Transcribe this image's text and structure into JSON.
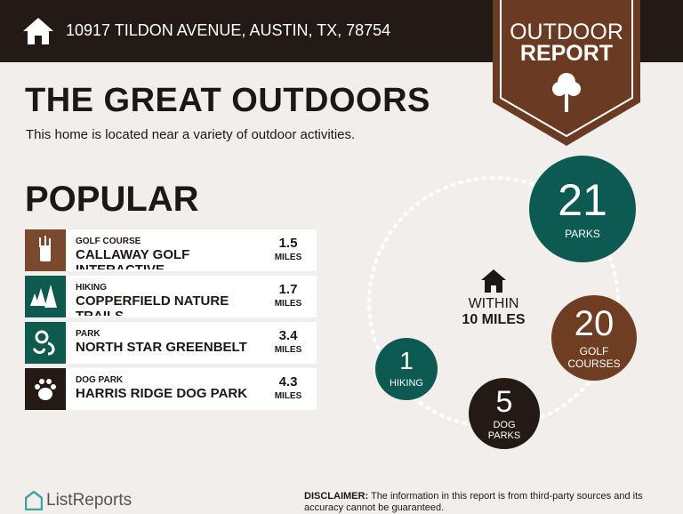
{
  "header": {
    "address": "10917 TILDON AVENUE, AUSTIN, TX, 78754",
    "badge": [
      "OUTDOOR",
      "REPORT"
    ]
  },
  "title": "THE GREAT OUTDOORS",
  "subtitle": "This home is located near a variety of outdoor activities.",
  "popular": {
    "heading": "POPULAR",
    "items": [
      {
        "category": "GOLF COURSE",
        "name": "CALLAWAY GOLF INTERACTIVE",
        "distance": 1.5,
        "unit": "MILES"
      },
      {
        "category": "HIKING",
        "name": "COPPERFIELD NATURE TRAILS",
        "distance": 1.7,
        "unit": "MILES"
      },
      {
        "category": "PARK",
        "name": "NORTH STAR GREENBELT",
        "distance": 3.4,
        "unit": "MILES"
      },
      {
        "category": "DOG PARK",
        "name": "HARRIS RIDGE DOG PARK",
        "distance": 4.3,
        "unit": "MILES"
      }
    ]
  },
  "within": [
    "WITHIN",
    "10 MILES"
  ],
  "counts": [
    {
      "value": 21,
      "lines": [
        "PARKS"
      ]
    },
    {
      "value": 20,
      "lines": [
        "GOLF",
        "COURSES"
      ]
    },
    {
      "value": 5,
      "lines": [
        "DOG",
        "PARKS"
      ]
    },
    {
      "value": 1,
      "lines": [
        "HIKING"
      ]
    }
  ],
  "footer": {
    "brand": "ListReports",
    "disclaimer_label": "DISCLAIMER:",
    "disclaimer": "The information in this report is from third-party sources and its accuracy cannot be guaranteed."
  }
}
